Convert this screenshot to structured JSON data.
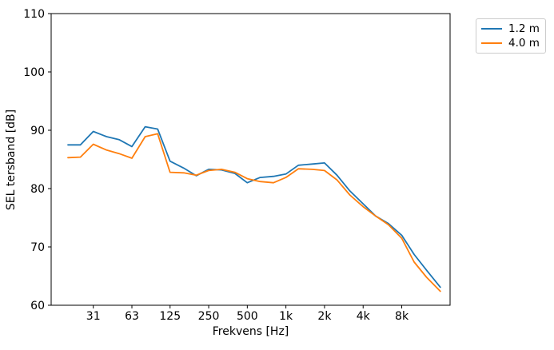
{
  "chart_data": {
    "type": "line",
    "title": "",
    "xlabel": "Frekvens [Hz]",
    "ylabel": "SEL tersband [dB]",
    "x_scale": "log",
    "grid": false,
    "legend_position": "outside upper right",
    "ylim": [
      60,
      110
    ],
    "y_ticks": [
      60,
      70,
      80,
      90,
      100,
      110
    ],
    "x_tick_freqs": [
      31.5,
      63,
      125,
      250,
      500,
      1000,
      2000,
      4000,
      8000
    ],
    "x_tick_labels": [
      "31",
      "63",
      "125",
      "250",
      "500",
      "1k",
      "2k",
      "4k",
      "8k"
    ],
    "frequencies_hz": [
      20,
      25,
      31.5,
      40,
      50,
      63,
      80,
      100,
      125,
      160,
      200,
      250,
      315,
      400,
      500,
      630,
      800,
      1000,
      1250,
      1600,
      2000,
      2500,
      3150,
      4000,
      5000,
      6300,
      8000,
      10000,
      12500,
      16000
    ],
    "series": [
      {
        "name": "1.2 m",
        "color": "#1f77b4",
        "values": [
          87.5,
          87.5,
          89.8,
          88.9,
          88.4,
          87.2,
          90.6,
          90.2,
          84.7,
          83.5,
          82.2,
          83.3,
          83.2,
          82.6,
          81.0,
          81.9,
          82.1,
          82.5,
          84.0,
          84.2,
          84.4,
          82.3,
          79.6,
          77.4,
          75.3,
          74.0,
          72.0,
          68.7,
          66.0,
          63.1
        ]
      },
      {
        "name": "4.0 m",
        "color": "#ff7f0e",
        "values": [
          85.3,
          85.4,
          87.6,
          86.6,
          86.0,
          85.2,
          88.9,
          89.4,
          82.8,
          82.7,
          82.3,
          83.1,
          83.3,
          82.8,
          81.7,
          81.2,
          81.0,
          81.9,
          83.4,
          83.3,
          83.1,
          81.5,
          78.9,
          76.9,
          75.3,
          73.8,
          71.5,
          67.4,
          64.8,
          62.4
        ]
      }
    ]
  }
}
